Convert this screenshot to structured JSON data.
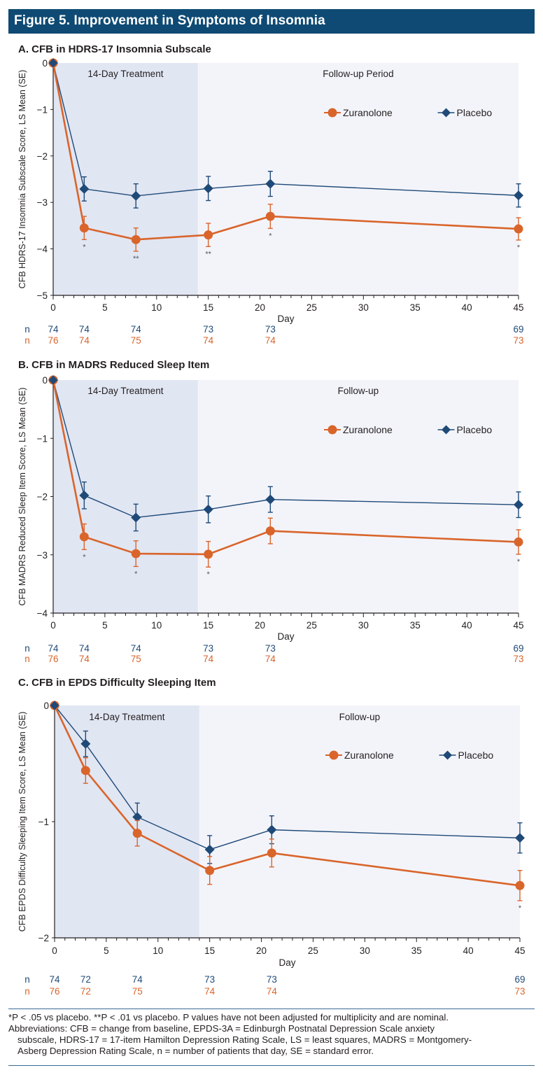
{
  "figure": {
    "title": "Figure 5. Improvement in Symptoms of Insomnia",
    "colors": {
      "header_bg": "#0e4a73",
      "zuranolone": "#d9652b",
      "placebo": "#1f4a78",
      "treatment_shade": "#e1e6f3",
      "followup_shade": "#f3f4fa"
    },
    "footnotes": {
      "significance": "*P < .05 vs placebo.   **P < .01 vs placebo. P values have not been adjusted for multiplicity and are nominal.",
      "abbrev_line1": "Abbreviations: CFB = change from baseline, EPDS-3A = Edinburgh Postnatal Depression Scale anxiety",
      "abbrev_line2": "subscale, HDRS-17 = 17-item Hamilton Depression Rating Scale, LS = least squares, MADRS = Montgomery-",
      "abbrev_line3": "Asberg Depression Rating Scale, n = number of patients that day, SE = standard error."
    }
  },
  "chart_data": [
    {
      "type": "line",
      "panel": "A",
      "title": "A. CFB in HDRS-17 Insomnia Subscale",
      "xlabel": "Day",
      "ylabel": "CFB HDRS-17 Insomnia Subscale Score, LS Mean (SE)",
      "xlim": [
        0,
        45
      ],
      "ylim": [
        -5,
        0
      ],
      "xticks": [
        0,
        5,
        10,
        15,
        20,
        25,
        30,
        35,
        40,
        45
      ],
      "yticks": [
        0,
        -1,
        -2,
        -3,
        -4,
        -5
      ],
      "ytick_labels": [
        "0",
        "−1",
        "−2",
        "−3",
        "−4",
        "−5"
      ],
      "grid": false,
      "legend_position": "top-right",
      "regions": [
        {
          "label": "14-Day Treatment",
          "from": 0,
          "to": 14
        },
        {
          "label": "Follow-up Period",
          "from": 14,
          "to": 45
        }
      ],
      "x": [
        0,
        3,
        8,
        15,
        21,
        45
      ],
      "series": [
        {
          "name": "Zuranolone",
          "marker": "circle",
          "values": [
            0,
            -3.55,
            -3.8,
            -3.7,
            -3.3,
            -3.57
          ],
          "se": [
            0,
            0.25,
            0.25,
            0.25,
            0.26,
            0.24
          ],
          "significance": [
            "",
            "*",
            "**",
            "**",
            "*",
            "*"
          ]
        },
        {
          "name": "Placebo",
          "marker": "diamond",
          "values": [
            0,
            -2.71,
            -2.86,
            -2.7,
            -2.6,
            -2.85
          ],
          "se": [
            0,
            0.26,
            0.26,
            0.26,
            0.27,
            0.25
          ]
        }
      ],
      "n_rows": [
        {
          "label": "n",
          "series": "Placebo",
          "x": [
            0,
            3,
            8,
            15,
            21,
            45
          ],
          "values": [
            "74",
            "74",
            "74",
            "73",
            "73",
            "69"
          ]
        },
        {
          "label": "n",
          "series": "Zuranolone",
          "x": [
            0,
            3,
            8,
            15,
            21,
            45
          ],
          "values": [
            "76",
            "74",
            "75",
            "74",
            "74",
            "73"
          ]
        }
      ]
    },
    {
      "type": "line",
      "panel": "B",
      "title": "B. CFB in MADRS Reduced Sleep Item",
      "xlabel": "Day",
      "ylabel": "CFB MADRS Reduced Sleep Item Score, LS Mean (SE)",
      "xlim": [
        0,
        45
      ],
      "ylim": [
        -4,
        0
      ],
      "xticks": [
        0,
        5,
        10,
        15,
        20,
        25,
        30,
        35,
        40,
        45
      ],
      "yticks": [
        0,
        -1,
        -2,
        -3,
        -4
      ],
      "ytick_labels": [
        "0",
        "−1",
        "−2",
        "−3",
        "−4"
      ],
      "grid": false,
      "legend_position": "top-right",
      "regions": [
        {
          "label": "14-Day Treatment",
          "from": 0,
          "to": 14
        },
        {
          "label": "Follow-up",
          "from": 14,
          "to": 45
        }
      ],
      "x": [
        0,
        3,
        8,
        15,
        21,
        45
      ],
      "series": [
        {
          "name": "Zuranolone",
          "marker": "circle",
          "values": [
            0,
            -2.69,
            -2.98,
            -2.99,
            -2.59,
            -2.78
          ],
          "se": [
            0,
            0.22,
            0.22,
            0.22,
            0.22,
            0.21
          ],
          "significance": [
            "",
            "*",
            "*",
            "*",
            "",
            "*"
          ]
        },
        {
          "name": "Placebo",
          "marker": "diamond",
          "values": [
            0,
            -1.98,
            -2.36,
            -2.22,
            -2.05,
            -2.14
          ],
          "se": [
            0,
            0.23,
            0.23,
            0.23,
            0.22,
            0.22
          ]
        }
      ],
      "n_rows": [
        {
          "label": "n",
          "series": "Placebo",
          "x": [
            0,
            3,
            8,
            15,
            21,
            45
          ],
          "values": [
            "74",
            "74",
            "74",
            "73",
            "73",
            "69"
          ]
        },
        {
          "label": "n",
          "series": "Zuranolone",
          "x": [
            0,
            3,
            8,
            15,
            21,
            45
          ],
          "values": [
            "76",
            "74",
            "75",
            "74",
            "74",
            "73"
          ]
        }
      ]
    },
    {
      "type": "line",
      "panel": "C",
      "title": "C. CFB in EPDS Difficulty Sleeping Item",
      "xlabel": "Day",
      "ylabel": "CFB EPDS Difficulty Sleeping Item Score, LS Mean (SE)",
      "xlim": [
        0,
        45
      ],
      "ylim": [
        -2,
        0
      ],
      "xticks": [
        0,
        5,
        10,
        15,
        20,
        25,
        30,
        35,
        40,
        45
      ],
      "yticks": [
        0,
        -1,
        -2
      ],
      "ytick_labels": [
        "0",
        "−1",
        "−2"
      ],
      "grid": false,
      "legend_position": "top-right",
      "regions": [
        {
          "label": "14-Day Treatment",
          "from": 0,
          "to": 14
        },
        {
          "label": "Follow-up",
          "from": 14,
          "to": 45
        }
      ],
      "x": [
        0,
        3,
        8,
        15,
        21,
        45
      ],
      "series": [
        {
          "name": "Zuranolone",
          "marker": "circle",
          "values": [
            0,
            -0.56,
            -1.1,
            -1.42,
            -1.27,
            -1.55
          ],
          "se": [
            0,
            0.11,
            0.11,
            0.12,
            0.12,
            0.13
          ],
          "significance": [
            "",
            "",
            "",
            "",
            "",
            "*"
          ]
        },
        {
          "name": "Placebo",
          "marker": "diamond",
          "values": [
            0,
            -0.33,
            -0.96,
            -1.24,
            -1.07,
            -1.14
          ],
          "se": [
            0,
            0.11,
            0.12,
            0.12,
            0.12,
            0.13
          ]
        }
      ],
      "n_rows": [
        {
          "label": "n",
          "series": "Placebo",
          "x": [
            0,
            3,
            8,
            15,
            21,
            45
          ],
          "values": [
            "74",
            "72",
            "74",
            "73",
            "73",
            "69"
          ]
        },
        {
          "label": "n",
          "series": "Zuranolone",
          "x": [
            0,
            3,
            8,
            15,
            21,
            45
          ],
          "values": [
            "76",
            "72",
            "75",
            "74",
            "74",
            "73"
          ]
        }
      ]
    }
  ]
}
